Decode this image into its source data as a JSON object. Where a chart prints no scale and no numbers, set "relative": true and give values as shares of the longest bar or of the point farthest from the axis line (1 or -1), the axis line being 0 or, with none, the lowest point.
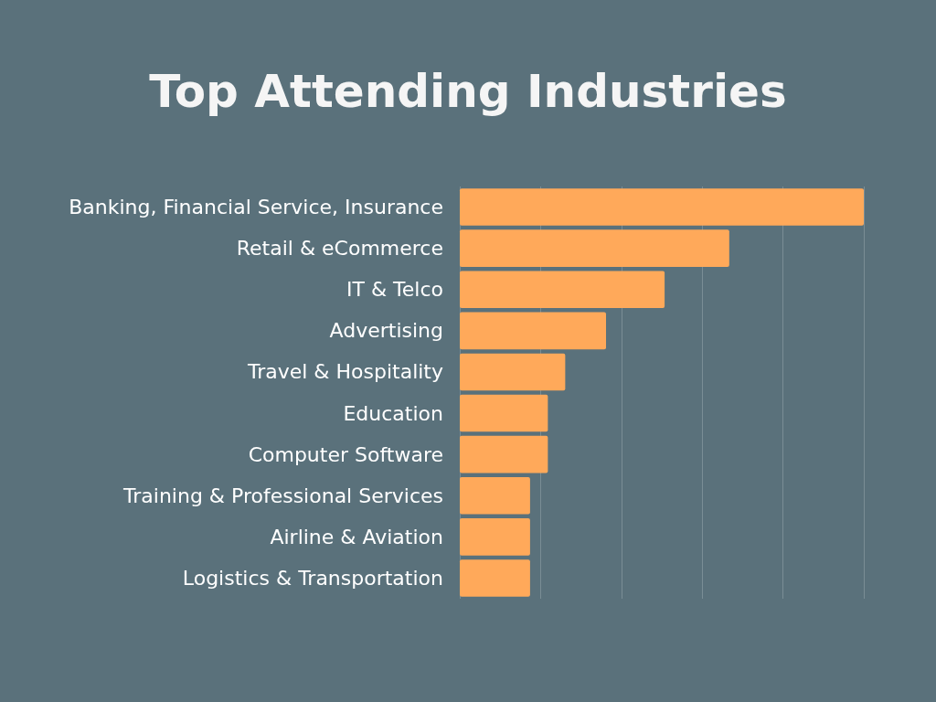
{
  "chart_data": {
    "type": "bar",
    "orientation": "horizontal",
    "relative": true,
    "title": "Top Attending Industries",
    "categories": [
      "Banking, Financial Service, Insurance",
      "Retail & eCommerce",
      "IT & Telco",
      "Advertising",
      "Travel & Hospitality",
      "Education",
      "Computer Software",
      "Training & Professional Services",
      "Airline & Aviation",
      "Logistics & Transportation"
    ],
    "values": [
      1,
      0.667,
      0.507,
      0.362,
      0.261,
      0.218,
      0.218,
      0.174,
      0.174,
      0.174
    ],
    "color": "#ffa95a",
    "grid": "x"
  }
}
